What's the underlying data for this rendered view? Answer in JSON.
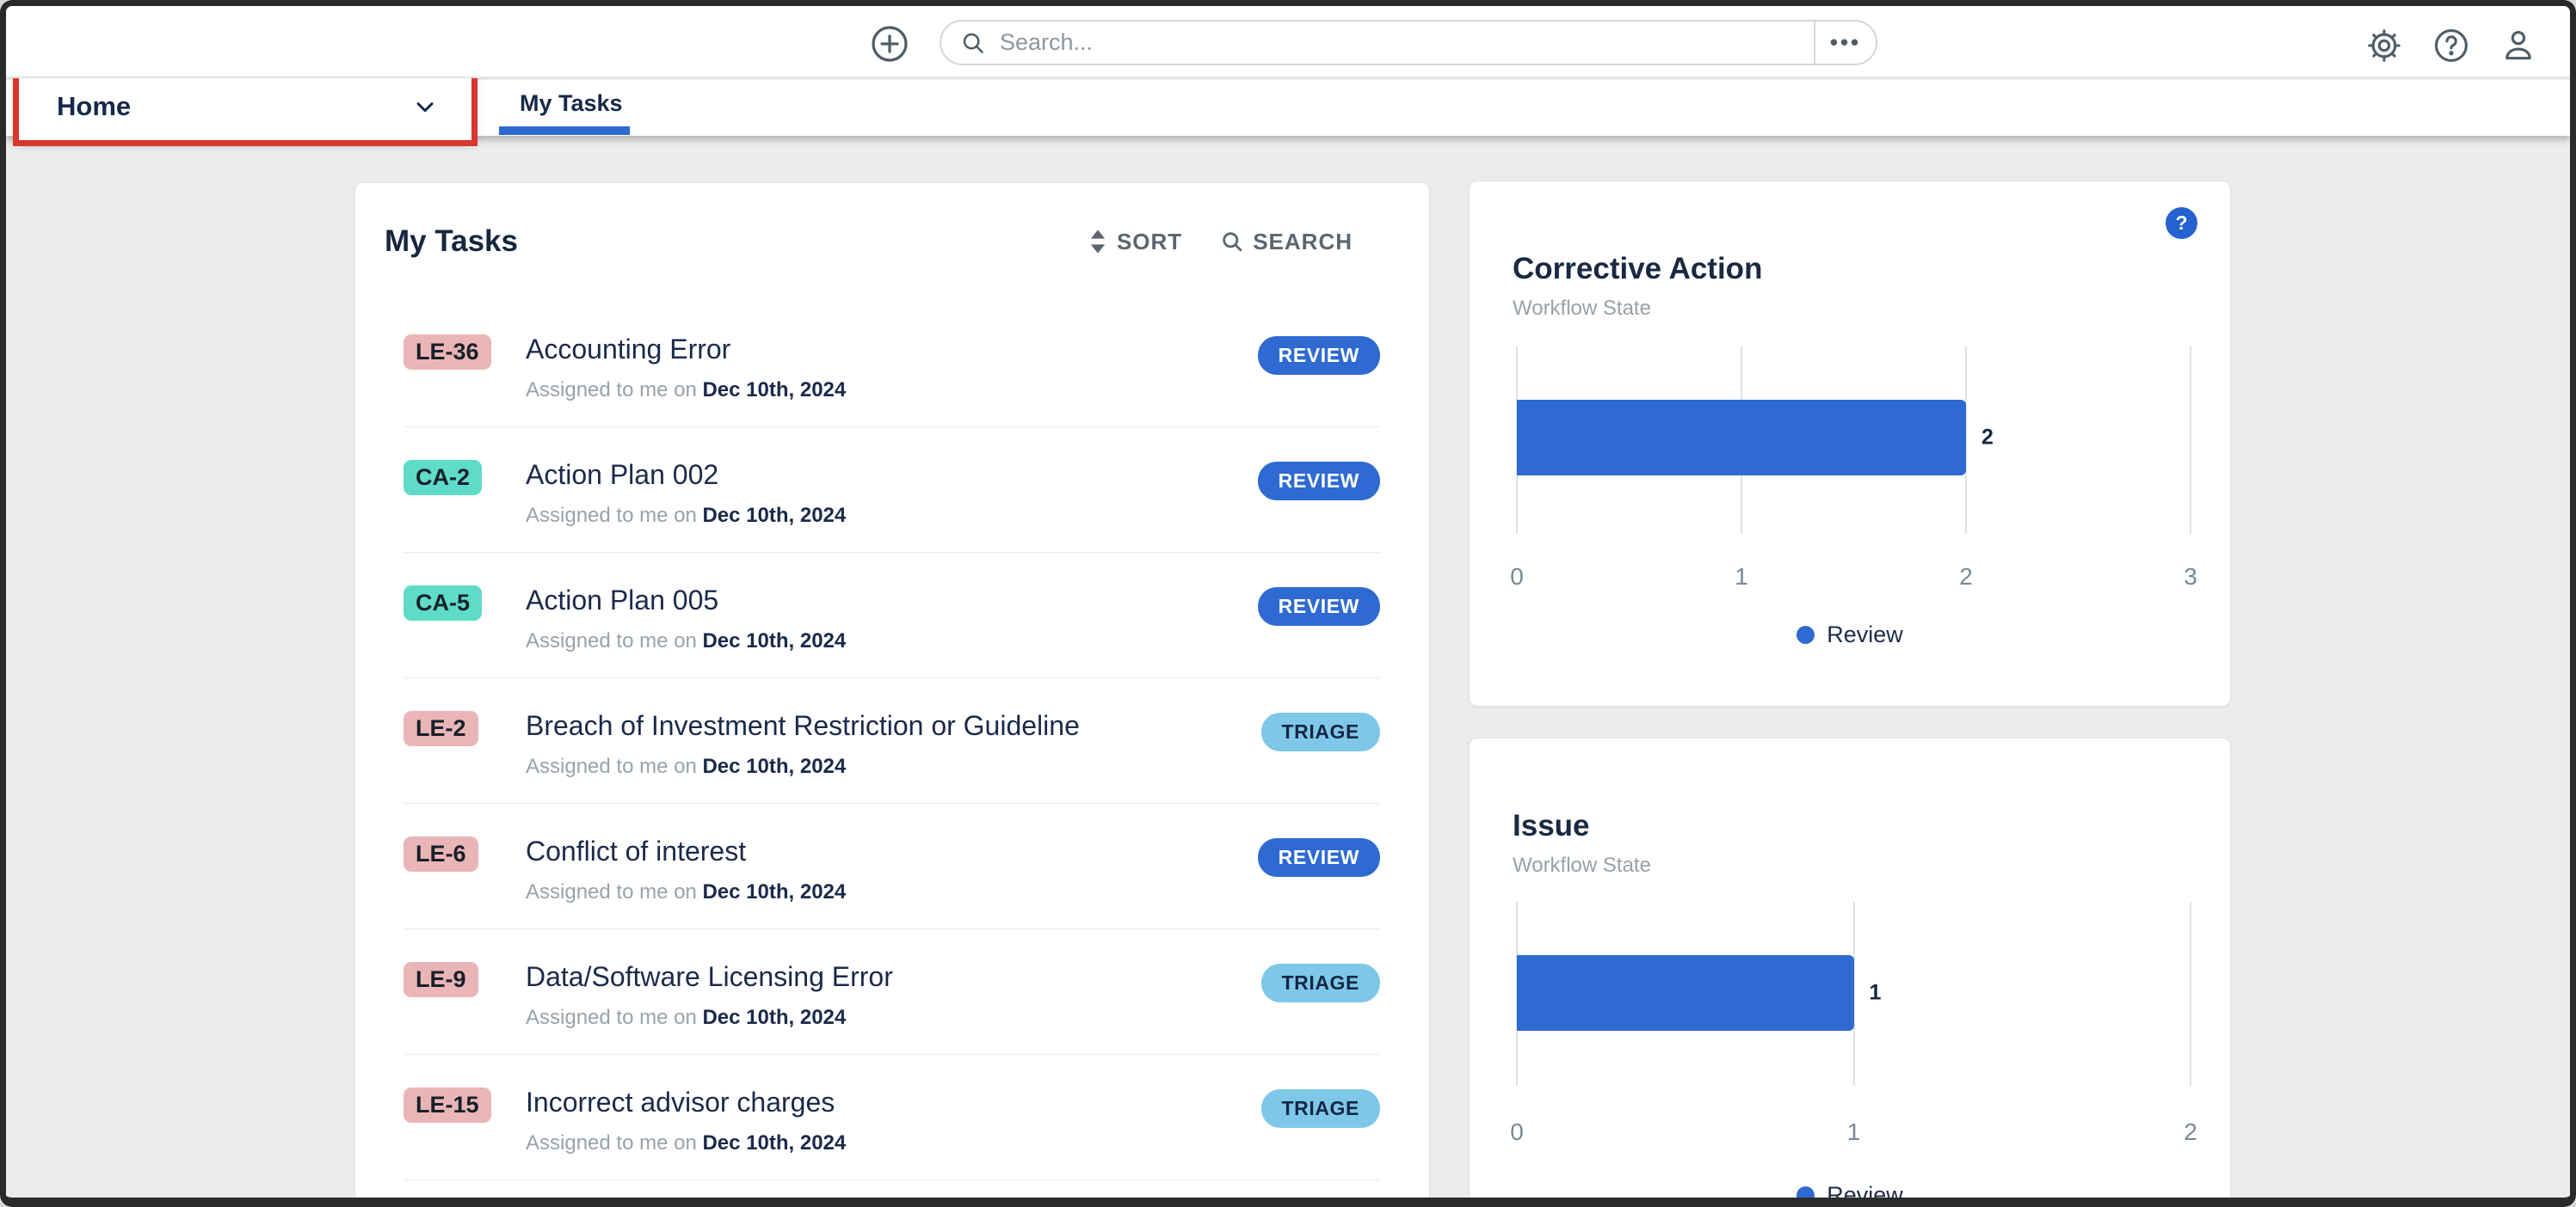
{
  "topbar": {
    "search_placeholder": "Search...",
    "ellipsis": "•••"
  },
  "tabbar": {
    "home_label": "Home",
    "active_tab_label": "My Tasks"
  },
  "tasks_card": {
    "title": "My Tasks",
    "sort_label": "SORT",
    "search_label": "SEARCH",
    "assigned_prefix": "Assigned to me on",
    "tasks": [
      {
        "id": "LE-36",
        "id_type": "le",
        "title": "Accounting Error",
        "date": "Dec 10th, 2024",
        "status": "REVIEW",
        "status_type": "review"
      },
      {
        "id": "CA-2",
        "id_type": "ca",
        "title": "Action Plan 002",
        "date": "Dec 10th, 2024",
        "status": "REVIEW",
        "status_type": "review"
      },
      {
        "id": "CA-5",
        "id_type": "ca",
        "title": "Action Plan 005",
        "date": "Dec 10th, 2024",
        "status": "REVIEW",
        "status_type": "review"
      },
      {
        "id": "LE-2",
        "id_type": "le",
        "title": "Breach of Investment Restriction or Guideline",
        "date": "Dec 10th, 2024",
        "status": "TRIAGE",
        "status_type": "triage"
      },
      {
        "id": "LE-6",
        "id_type": "le",
        "title": "Conflict of interest",
        "date": "Dec 10th, 2024",
        "status": "REVIEW",
        "status_type": "review"
      },
      {
        "id": "LE-9",
        "id_type": "le",
        "title": "Data/Software Licensing Error",
        "date": "Dec 10th, 2024",
        "status": "TRIAGE",
        "status_type": "triage"
      },
      {
        "id": "LE-15",
        "id_type": "le",
        "title": "Incorrect advisor charges",
        "date": "Dec 10th, 2024",
        "status": "TRIAGE",
        "status_type": "triage"
      }
    ]
  },
  "chart_data": [
    {
      "type": "bar",
      "orientation": "horizontal",
      "title": "Corrective Action",
      "subtitle": "Workflow State",
      "categories": [
        "Review"
      ],
      "values": [
        2
      ],
      "xlim": [
        0,
        3
      ],
      "x_ticks": [
        0,
        1,
        2,
        3
      ],
      "legend": [
        "Review"
      ],
      "legend_position": "bottom",
      "grid": true,
      "has_help_icon": true,
      "help_glyph": "?",
      "bar_color": "#2e6ad1"
    },
    {
      "type": "bar",
      "orientation": "horizontal",
      "title": "Issue",
      "subtitle": "Workflow State",
      "categories": [
        "Review"
      ],
      "values": [
        1
      ],
      "xlim": [
        0,
        2
      ],
      "x_ticks": [
        0,
        1,
        2
      ],
      "legend": [
        "Review"
      ],
      "legend_position": "bottom",
      "grid": true,
      "has_help_icon": false,
      "help_glyph": "?",
      "bar_color": "#2e6ad1"
    }
  ],
  "colors": {
    "accent_blue": "#2e6ad1",
    "tab_underline": "#2b6ace",
    "triage_pill_bg": "#7fc7e9",
    "triage_pill_text": "#132743",
    "review_pill_bg": "#2e6ad1",
    "review_pill_text": "#ffffff",
    "badge_le_bg": "#eab5b7",
    "badge_ca_bg": "#5fdcc8",
    "badge_text": "#18202a",
    "annotation_red": "#d8362e",
    "dark_text": "#1b2a49",
    "gray_text": "#98a1a9",
    "icon_slate": "#4e5d68"
  }
}
